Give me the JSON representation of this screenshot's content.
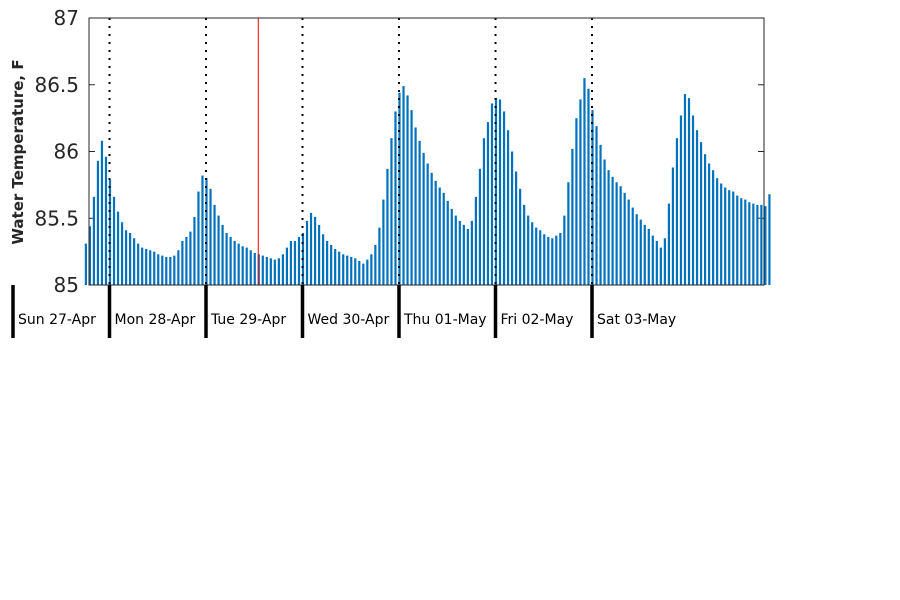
{
  "chart_data": {
    "type": "bar",
    "title": "",
    "ylabel": "Water Temperature, F",
    "xlabel": "",
    "ylim": [
      85,
      87
    ],
    "yticks": [
      85,
      85.5,
      86,
      86.5,
      87
    ],
    "ytick_labels": [
      "85",
      "85.5",
      "86",
      "86.5",
      "87"
    ],
    "x_start": "Sun 27-Apr 00:00",
    "bar_interval_hours": 1,
    "day_labels": [
      "Sun 27-Apr",
      "Mon 28-Apr",
      "Tue 29-Apr",
      "Wed 30-Apr",
      "Thu 01-May",
      "Fri 02-May",
      "Sat 03-May"
    ],
    "noon_marker_style": "dotted",
    "current_time_marker": {
      "time": "Tue 29-Apr 13:00",
      "color": "#ff0000"
    },
    "grid": false,
    "bar_color": "#0072bd",
    "values": [
      85.31,
      85.44,
      85.66,
      85.93,
      86.08,
      85.96,
      85.79,
      85.66,
      85.55,
      85.47,
      85.41,
      85.39,
      85.35,
      85.31,
      85.28,
      85.27,
      85.26,
      85.25,
      85.23,
      85.22,
      85.21,
      85.21,
      85.22,
      85.26,
      85.33,
      85.36,
      85.4,
      85.51,
      85.7,
      85.82,
      85.8,
      85.72,
      85.6,
      85.52,
      85.45,
      85.39,
      85.36,
      85.33,
      85.31,
      85.29,
      85.28,
      85.26,
      85.24,
      85.23,
      85.22,
      85.21,
      85.2,
      85.19,
      85.2,
      85.23,
      85.28,
      85.33,
      85.33,
      85.36,
      85.39,
      85.48,
      85.54,
      85.51,
      85.45,
      85.38,
      85.33,
      85.3,
      85.27,
      85.25,
      85.23,
      85.22,
      85.21,
      85.2,
      85.18,
      85.16,
      85.19,
      85.23,
      85.3,
      85.43,
      85.64,
      85.87,
      86.1,
      86.3,
      86.44,
      86.49,
      86.42,
      86.31,
      86.18,
      86.08,
      85.99,
      85.91,
      85.84,
      85.78,
      85.73,
      85.69,
      85.63,
      85.57,
      85.52,
      85.48,
      85.45,
      85.42,
      85.48,
      85.66,
      85.87,
      86.1,
      86.22,
      86.36,
      86.4,
      86.39,
      86.3,
      86.16,
      86.0,
      85.85,
      85.72,
      85.6,
      85.52,
      85.47,
      85.43,
      85.41,
      85.38,
      85.36,
      85.35,
      85.37,
      85.39,
      85.52,
      85.77,
      86.02,
      86.25,
      86.39,
      86.55,
      86.47,
      86.31,
      86.19,
      86.05,
      85.94,
      85.86,
      85.81,
      85.77,
      85.74,
      85.69,
      85.64,
      85.58,
      85.53,
      85.49,
      85.45,
      85.42,
      85.37,
      85.33,
      85.28,
      85.35,
      85.61,
      85.88,
      86.1,
      86.27,
      86.43,
      86.4,
      86.27,
      86.16,
      86.07,
      85.98,
      85.91,
      85.86,
      85.8,
      85.76,
      85.73,
      85.71,
      85.7,
      85.67,
      85.65,
      85.64,
      85.62,
      85.61,
      85.6,
      85.6,
      85.59,
      85.68
    ]
  }
}
